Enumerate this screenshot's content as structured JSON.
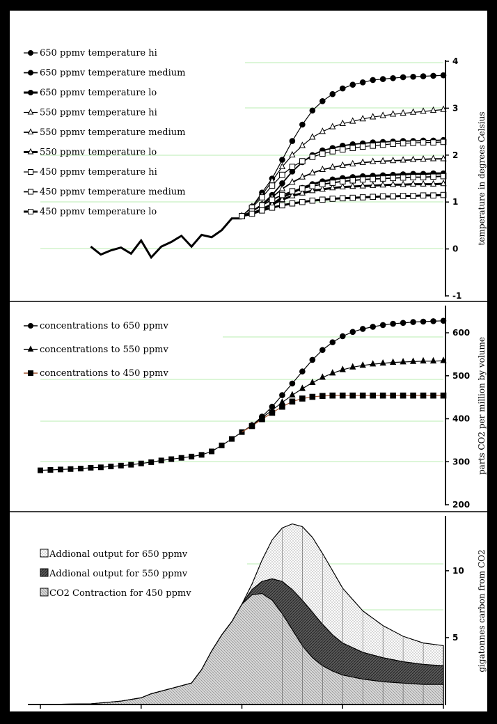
{
  "x_axis": {
    "min": 1800,
    "max": 2200,
    "ticks": [
      1800,
      1900,
      2000,
      2100,
      2200
    ]
  },
  "chart_data": [
    {
      "type": "line",
      "ylabel": "temperature in degrees Celsius",
      "ylim": [
        -1,
        4
      ],
      "yticks": [
        -1,
        0,
        1,
        2,
        3,
        4
      ],
      "grid": "horizontal light green",
      "legend_position": "top-left",
      "historical": {
        "x": [
          1850,
          1860,
          1870,
          1880,
          1890,
          1900,
          1910,
          1920,
          1930,
          1940,
          1950,
          1960,
          1970,
          1980,
          1990,
          2000
        ],
        "y": [
          0.05,
          -0.12,
          -0.03,
          0.03,
          -0.1,
          0.18,
          -0.18,
          0.05,
          0.15,
          0.28,
          0.05,
          0.3,
          0.25,
          0.4,
          0.65,
          0.65
        ]
      },
      "series": [
        {
          "name": "650 ppmv temperature hi",
          "marker": "circle",
          "fill": "filled",
          "weight": "thin",
          "x": [
            2000,
            2010,
            2020,
            2030,
            2040,
            2050,
            2060,
            2070,
            2080,
            2090,
            2100,
            2110,
            2120,
            2130,
            2140,
            2150,
            2160,
            2170,
            2180,
            2190,
            2200
          ],
          "y": [
            0.7,
            0.9,
            1.2,
            1.5,
            1.9,
            2.3,
            2.65,
            2.95,
            3.15,
            3.3,
            3.42,
            3.5,
            3.55,
            3.6,
            3.62,
            3.64,
            3.66,
            3.67,
            3.68,
            3.69,
            3.7
          ]
        },
        {
          "name": "650 ppmv temperature medium",
          "marker": "circle",
          "fill": "filled",
          "weight": "medium",
          "x": [
            2000,
            2010,
            2020,
            2030,
            2040,
            2050,
            2060,
            2070,
            2080,
            2090,
            2100,
            2110,
            2120,
            2130,
            2140,
            2150,
            2160,
            2170,
            2180,
            2190,
            2200
          ],
          "y": [
            0.7,
            0.8,
            0.95,
            1.15,
            1.4,
            1.65,
            1.85,
            2.0,
            2.1,
            2.15,
            2.2,
            2.23,
            2.25,
            2.27,
            2.28,
            2.29,
            2.3,
            2.3,
            2.31,
            2.31,
            2.32
          ]
        },
        {
          "name": "650 ppmv temperature lo",
          "marker": "circle",
          "fill": "filled",
          "weight": "thick",
          "x": [
            2000,
            2010,
            2020,
            2030,
            2040,
            2050,
            2060,
            2070,
            2080,
            2090,
            2100,
            2110,
            2120,
            2130,
            2140,
            2150,
            2160,
            2170,
            2180,
            2190,
            2200
          ],
          "y": [
            0.7,
            0.75,
            0.85,
            0.95,
            1.1,
            1.2,
            1.3,
            1.38,
            1.44,
            1.48,
            1.51,
            1.53,
            1.55,
            1.56,
            1.57,
            1.58,
            1.59,
            1.6,
            1.6,
            1.61,
            1.61
          ]
        },
        {
          "name": "550 ppmv temperature hi",
          "marker": "triangle",
          "fill": "open",
          "weight": "thin",
          "x": [
            2000,
            2010,
            2020,
            2030,
            2040,
            2050,
            2060,
            2070,
            2080,
            2090,
            2100,
            2110,
            2120,
            2130,
            2140,
            2150,
            2160,
            2170,
            2180,
            2190,
            2200
          ],
          "y": [
            0.7,
            0.9,
            1.15,
            1.45,
            1.75,
            2.0,
            2.2,
            2.38,
            2.5,
            2.6,
            2.67,
            2.72,
            2.77,
            2.81,
            2.84,
            2.87,
            2.89,
            2.91,
            2.93,
            2.95,
            2.97
          ]
        },
        {
          "name": "550 ppmv temperature medium",
          "marker": "triangle",
          "fill": "open",
          "weight": "medium",
          "x": [
            2000,
            2010,
            2020,
            2030,
            2040,
            2050,
            2060,
            2070,
            2080,
            2090,
            2100,
            2110,
            2120,
            2130,
            2140,
            2150,
            2160,
            2170,
            2180,
            2190,
            2200
          ],
          "y": [
            0.7,
            0.8,
            0.95,
            1.1,
            1.28,
            1.42,
            1.53,
            1.62,
            1.69,
            1.74,
            1.78,
            1.81,
            1.84,
            1.86,
            1.87,
            1.88,
            1.89,
            1.9,
            1.91,
            1.92,
            1.92
          ]
        },
        {
          "name": "550 ppmv temperature lo",
          "marker": "triangle",
          "fill": "open",
          "weight": "thick",
          "x": [
            2000,
            2010,
            2020,
            2030,
            2040,
            2050,
            2060,
            2070,
            2080,
            2090,
            2100,
            2110,
            2120,
            2130,
            2140,
            2150,
            2160,
            2170,
            2180,
            2190,
            2200
          ],
          "y": [
            0.7,
            0.75,
            0.85,
            0.95,
            1.05,
            1.13,
            1.19,
            1.24,
            1.27,
            1.3,
            1.32,
            1.33,
            1.34,
            1.35,
            1.36,
            1.37,
            1.37,
            1.38,
            1.38,
            1.38,
            1.39
          ]
        },
        {
          "name": "450 ppmv temperature hi",
          "marker": "square",
          "fill": "open",
          "weight": "thin",
          "x": [
            2000,
            2010,
            2020,
            2030,
            2040,
            2050,
            2060,
            2070,
            2080,
            2090,
            2100,
            2110,
            2120,
            2130,
            2140,
            2150,
            2160,
            2170,
            2180,
            2190,
            2200
          ],
          "y": [
            0.7,
            0.88,
            1.1,
            1.35,
            1.58,
            1.75,
            1.87,
            1.96,
            2.03,
            2.08,
            2.12,
            2.15,
            2.18,
            2.2,
            2.22,
            2.24,
            2.25,
            2.26,
            2.27,
            2.27,
            2.28
          ]
        },
        {
          "name": "450 ppmv temperature medium",
          "marker": "square",
          "fill": "open",
          "weight": "medium",
          "x": [
            2000,
            2010,
            2020,
            2030,
            2040,
            2050,
            2060,
            2070,
            2080,
            2090,
            2100,
            2110,
            2120,
            2130,
            2140,
            2150,
            2160,
            2170,
            2180,
            2190,
            2200
          ],
          "y": [
            0.7,
            0.8,
            0.93,
            1.05,
            1.15,
            1.23,
            1.29,
            1.34,
            1.38,
            1.41,
            1.44,
            1.46,
            1.48,
            1.49,
            1.5,
            1.51,
            1.52,
            1.53,
            1.53,
            1.54,
            1.55
          ]
        },
        {
          "name": "450 ppmv temperature lo",
          "marker": "square",
          "fill": "open",
          "weight": "thick",
          "x": [
            2000,
            2010,
            2020,
            2030,
            2040,
            2050,
            2060,
            2070,
            2080,
            2090,
            2100,
            2110,
            2120,
            2130,
            2140,
            2150,
            2160,
            2170,
            2180,
            2190,
            2200
          ],
          "y": [
            0.7,
            0.75,
            0.82,
            0.88,
            0.93,
            0.97,
            1.0,
            1.03,
            1.05,
            1.07,
            1.08,
            1.09,
            1.1,
            1.11,
            1.12,
            1.12,
            1.13,
            1.13,
            1.14,
            1.14,
            1.15
          ]
        }
      ]
    },
    {
      "type": "line",
      "ylabel": "parts CO2 per million by volume",
      "ylim": [
        200,
        660
      ],
      "yticks": [
        200,
        300,
        400,
        500,
        600
      ],
      "grid": "horizontal light green",
      "legend_position": "top-left",
      "shared_x": [
        1800,
        1810,
        1820,
        1830,
        1840,
        1850,
        1860,
        1870,
        1880,
        1890,
        1900,
        1910,
        1920,
        1930,
        1940,
        1950,
        1960,
        1970,
        1980,
        1990,
        2000
      ],
      "shared_y": [
        280,
        281,
        282,
        283,
        284,
        286,
        287,
        289,
        291,
        293,
        296,
        299,
        303,
        306,
        309,
        312,
        316,
        324,
        338,
        353,
        369
      ],
      "series": [
        {
          "name": "concentrations to 650 ppmv",
          "marker": "circle",
          "x": [
            2010,
            2020,
            2030,
            2040,
            2050,
            2060,
            2070,
            2080,
            2090,
            2100,
            2110,
            2120,
            2130,
            2140,
            2150,
            2160,
            2170,
            2180,
            2190,
            2200
          ],
          "y": [
            385,
            405,
            428,
            455,
            482,
            510,
            537,
            560,
            578,
            592,
            602,
            609,
            614,
            618,
            621,
            623,
            625,
            626,
            627,
            628
          ]
        },
        {
          "name": "concentrations to 550 ppmv",
          "marker": "triangle",
          "x": [
            2010,
            2020,
            2030,
            2040,
            2050,
            2060,
            2070,
            2080,
            2090,
            2100,
            2110,
            2120,
            2130,
            2140,
            2150,
            2160,
            2170,
            2180,
            2190,
            2200
          ],
          "y": [
            384,
            402,
            420,
            438,
            455,
            470,
            484,
            496,
            506,
            514,
            520,
            524,
            527,
            529,
            531,
            532,
            533,
            534,
            534,
            535
          ]
        },
        {
          "name": "concentrations to 450 ppmv",
          "marker": "square",
          "x": [
            2010,
            2020,
            2030,
            2040,
            2050,
            2060,
            2070,
            2080,
            2090,
            2100,
            2110,
            2120,
            2130,
            2140,
            2150,
            2160,
            2170,
            2180,
            2190,
            2200
          ],
          "y": [
            383,
            399,
            414,
            428,
            440,
            447,
            451,
            453,
            454,
            454,
            454,
            454,
            454,
            454,
            454,
            454,
            454,
            454,
            454,
            454
          ]
        }
      ]
    },
    {
      "type": "area",
      "ylabel": "gigatonnes carbon from CO2",
      "ylim": [
        0,
        14
      ],
      "yticks": [
        5,
        10
      ],
      "grid": "horizontal light green",
      "legend_position": "top-left",
      "series": [
        {
          "name": "Addional output for 650 ppmv",
          "pattern": "dots",
          "x": [
            1800,
            1850,
            1880,
            1900,
            1910,
            1930,
            1950,
            1960,
            1970,
            1980,
            1990,
            2000,
            2010,
            2020,
            2030,
            2040,
            2050,
            2060,
            2070,
            2080,
            2090,
            2100,
            2120,
            2140,
            2160,
            2180,
            2200
          ],
          "y": [
            0,
            0.05,
            0.25,
            0.5,
            0.8,
            1.2,
            1.6,
            2.6,
            4,
            5.2,
            6.2,
            7.5,
            9,
            10.8,
            12.3,
            13.2,
            13.5,
            13.3,
            12.5,
            11.3,
            10,
            8.7,
            7,
            5.9,
            5.1,
            4.6,
            4.4
          ]
        },
        {
          "name": "Addional output for 550 ppmv",
          "pattern": "dark",
          "x": [
            1800,
            1850,
            1880,
            1900,
            1910,
            1930,
            1950,
            1960,
            1970,
            1980,
            1990,
            2000,
            2010,
            2020,
            2030,
            2040,
            2050,
            2060,
            2070,
            2080,
            2090,
            2100,
            2120,
            2140,
            2160,
            2180,
            2200
          ],
          "y": [
            0,
            0.05,
            0.25,
            0.5,
            0.8,
            1.2,
            1.6,
            2.6,
            4,
            5.2,
            6.2,
            7.5,
            8.6,
            9.2,
            9.4,
            9.2,
            8.6,
            7.8,
            6.9,
            6.0,
            5.2,
            4.6,
            3.9,
            3.5,
            3.2,
            3.0,
            2.9
          ]
        },
        {
          "name": "CO2 Contraction for 450 ppmv",
          "pattern": "hatch",
          "x": [
            1800,
            1850,
            1880,
            1900,
            1910,
            1930,
            1950,
            1960,
            1970,
            1980,
            1990,
            2000,
            2010,
            2020,
            2030,
            2040,
            2050,
            2060,
            2070,
            2080,
            2090,
            2100,
            2120,
            2140,
            2160,
            2180,
            2200
          ],
          "y": [
            0,
            0.05,
            0.25,
            0.5,
            0.8,
            1.2,
            1.6,
            2.6,
            4,
            5.2,
            6.2,
            7.5,
            8.2,
            8.3,
            7.8,
            6.8,
            5.6,
            4.4,
            3.5,
            2.9,
            2.5,
            2.2,
            1.9,
            1.7,
            1.6,
            1.5,
            1.5
          ]
        }
      ]
    }
  ]
}
